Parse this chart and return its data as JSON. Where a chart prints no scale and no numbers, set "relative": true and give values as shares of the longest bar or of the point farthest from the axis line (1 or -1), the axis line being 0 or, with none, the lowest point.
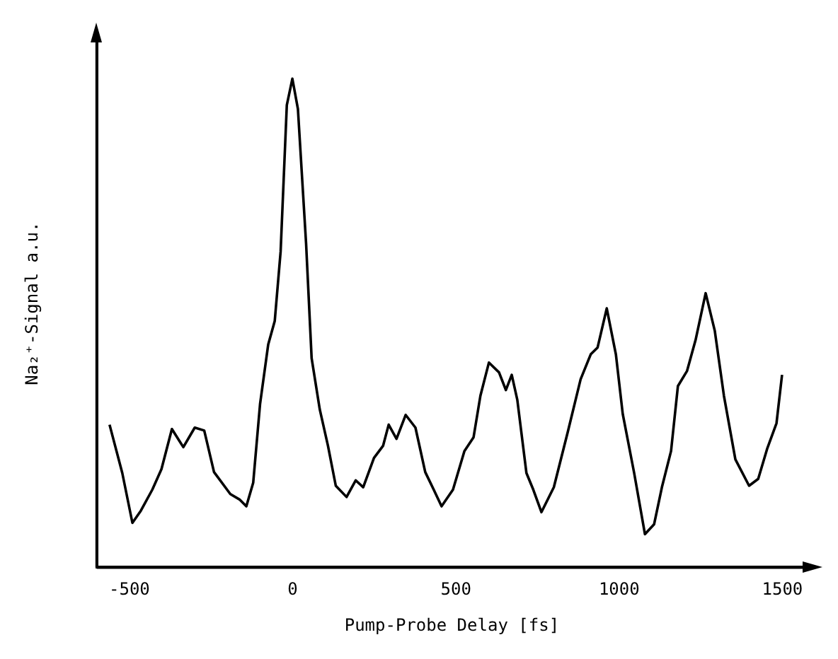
{
  "chart_data": {
    "type": "line",
    "xlabel": "Pump-Probe Delay [fs]",
    "ylabel": "Na₂⁺-Signal a.u.",
    "relative": true,
    "color": "#000000",
    "grid": false,
    "legend": false,
    "marker": "none",
    "line_style": "solid",
    "xlim": [
      -600,
      1575
    ],
    "xticks": [
      -500,
      0,
      500,
      1000,
      1500
    ],
    "x": [
      -561,
      -522,
      -491,
      -465,
      -430,
      -402,
      -370,
      -335,
      -300,
      -271,
      -241,
      -191,
      -163,
      -142,
      -121,
      -100,
      -75,
      -55,
      -37,
      -18,
      -1,
      16,
      41,
      58,
      83,
      108,
      132,
      165,
      193,
      216,
      249,
      277,
      294,
      318,
      346,
      376,
      406,
      432,
      456,
      491,
      526,
      554,
      575,
      601,
      632,
      653,
      671,
      688,
      716,
      737,
      762,
      800,
      843,
      882,
      913,
      934,
      962,
      990,
      1011,
      1046,
      1079,
      1107,
      1131,
      1159,
      1180,
      1208,
      1234,
      1265,
      1293,
      1321,
      1356,
      1398,
      1426,
      1454,
      1482,
      1499
    ],
    "values": [
      0.292,
      0.193,
      0.091,
      0.116,
      0.159,
      0.201,
      0.283,
      0.246,
      0.286,
      0.28,
      0.195,
      0.15,
      0.139,
      0.125,
      0.173,
      0.334,
      0.456,
      0.504,
      0.646,
      0.946,
      1,
      0.938,
      0.663,
      0.428,
      0.323,
      0.249,
      0.167,
      0.144,
      0.178,
      0.164,
      0.224,
      0.249,
      0.292,
      0.263,
      0.312,
      0.286,
      0.195,
      0.159,
      0.125,
      0.159,
      0.238,
      0.266,
      0.351,
      0.419,
      0.399,
      0.363,
      0.394,
      0.343,
      0.193,
      0.159,
      0.113,
      0.164,
      0.278,
      0.385,
      0.436,
      0.45,
      0.53,
      0.436,
      0.314,
      0.193,
      0.068,
      0.088,
      0.164,
      0.238,
      0.371,
      0.402,
      0.465,
      0.561,
      0.484,
      0.351,
      0.221,
      0.167,
      0.181,
      0.244,
      0.295,
      0.394
    ]
  }
}
